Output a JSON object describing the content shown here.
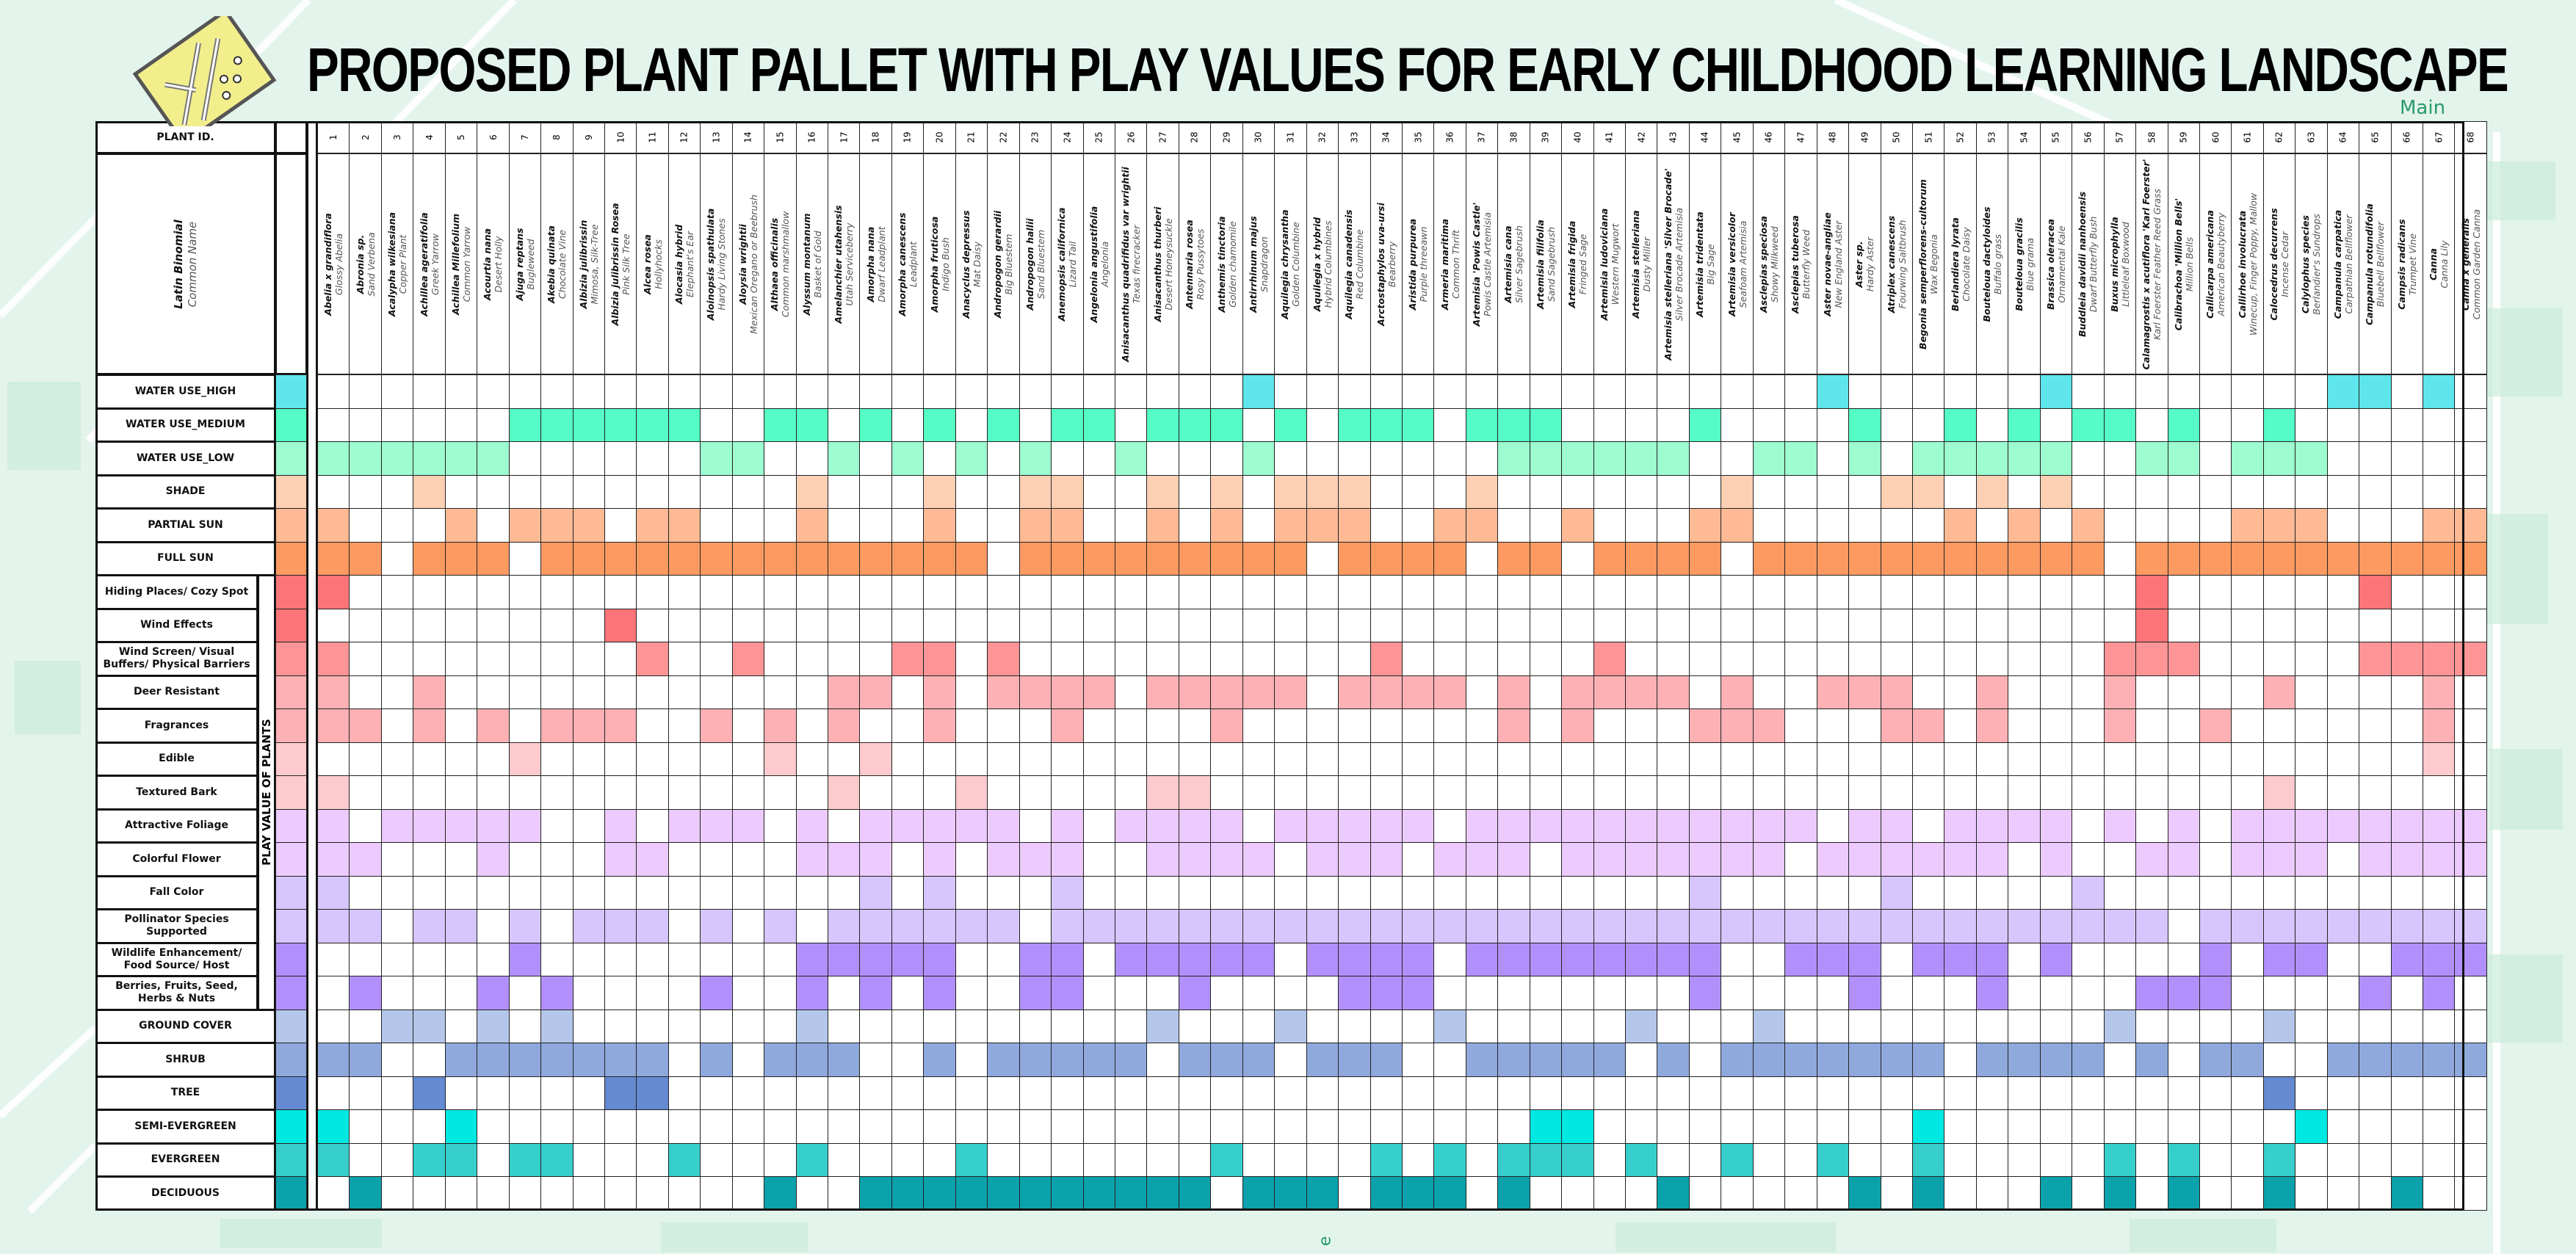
{
  "title": "PROPOSED PLANT PALLET WITH PLAY VALUES FOR EARLY CHILDHOOD LEARNING LANDSCAPE",
  "map_label": "Main",
  "map_label_bottom": "e",
  "logo_icon": "playground-map-icon",
  "header": {
    "plant_id_label": "PLANT ID.",
    "latin_label": "Latin Binomial",
    "common_label": "Common Name",
    "play_value_group_label": "PLAY VALUE OF PLANTS"
  },
  "plants": [
    {
      "id": "1",
      "latin": "Abelia x grandiflora",
      "common": "Glossy Abelia"
    },
    {
      "id": "2",
      "latin": "Abronia sp.",
      "common": "Sand Verbena"
    },
    {
      "id": "3",
      "latin": "Acalypha wilkesiana",
      "common": "Copper Plant"
    },
    {
      "id": "4",
      "latin": "Achillea ageratifolia",
      "common": "Greek Yarrow"
    },
    {
      "id": "5",
      "latin": "Achillea Millefolium",
      "common": "Common Yarrow"
    },
    {
      "id": "6",
      "latin": "Acourtia nana",
      "common": "Desert Holly"
    },
    {
      "id": "7",
      "latin": "Ajuga reptans",
      "common": "Bugleweed"
    },
    {
      "id": "8",
      "latin": "Akebia quinata",
      "common": "Chocolate Vine"
    },
    {
      "id": "9",
      "latin": "Albizia julibrissin",
      "common": "Mimosa, Silk-Tree"
    },
    {
      "id": "10",
      "latin": "Albizia julibrissin Rosea",
      "common": "Pink Silk Tree"
    },
    {
      "id": "11",
      "latin": "Alcea rosea",
      "common": "Hollyhocks"
    },
    {
      "id": "12",
      "latin": "Alocasia hybrid",
      "common": "Elephant's Ear"
    },
    {
      "id": "13",
      "latin": "Aloinopsis spathulata",
      "common": "Hardy Living Stones"
    },
    {
      "id": "14",
      "latin": "Aloysia wrightii",
      "common": "Mexican Oregano or Beebrush"
    },
    {
      "id": "15",
      "latin": "Althaea officinalis",
      "common": "Common marshmallow"
    },
    {
      "id": "16",
      "latin": "Alyssum montanum",
      "common": "Basket of Gold"
    },
    {
      "id": "17",
      "latin": "Amelanchier utahensis",
      "common": "Utah Serviceberry"
    },
    {
      "id": "18",
      "latin": "Amorpha nana",
      "common": "Dwarf Leadplant"
    },
    {
      "id": "19",
      "latin": "Amorpha canescens",
      "common": "Leadplant"
    },
    {
      "id": "20",
      "latin": "Amorpha fruticosa",
      "common": "Indigo Bush"
    },
    {
      "id": "21",
      "latin": "Anacyclus depressus",
      "common": "Mat Daisy"
    },
    {
      "id": "22",
      "latin": "Andropogon gerardii",
      "common": "Big Bluestem"
    },
    {
      "id": "23",
      "latin": "Andropogon hallii",
      "common": "Sand Bluestem"
    },
    {
      "id": "24",
      "latin": "Anemopsis californica",
      "common": "Lizard Tail"
    },
    {
      "id": "25",
      "latin": "Angelonia angustifolia",
      "common": "Angelonia"
    },
    {
      "id": "26",
      "latin": "Anisacanthus quadrifidus var wrightii",
      "common": "Texas firecracker"
    },
    {
      "id": "27",
      "latin": "Anisacanthus thurberi",
      "common": "Desert Honeysuckle"
    },
    {
      "id": "28",
      "latin": "Antennaria rosea",
      "common": "Rosy Pussytoes"
    },
    {
      "id": "29",
      "latin": "Anthemis tinctoria",
      "common": "Golden chamomile"
    },
    {
      "id": "30",
      "latin": "Antirrhinum majus",
      "common": "Snapdragon"
    },
    {
      "id": "31",
      "latin": "Aquilegia chrysantha",
      "common": "Golden Columbine"
    },
    {
      "id": "32",
      "latin": "Aquilegia x hybrid",
      "common": "Hybrid Columbines"
    },
    {
      "id": "33",
      "latin": "Aquilegia canadensis",
      "common": "Red Columbine"
    },
    {
      "id": "34",
      "latin": "Arctostaphylos uva-ursi",
      "common": "Bearberry"
    },
    {
      "id": "35",
      "latin": "Aristida purpurea",
      "common": "Purple threeawn"
    },
    {
      "id": "36",
      "latin": "Armeria maritima",
      "common": "Common Thrift"
    },
    {
      "id": "37",
      "latin": "Artemisia 'Powis Castle'",
      "common": "Powis Castle Artemisia"
    },
    {
      "id": "38",
      "latin": "Artemisia cana",
      "common": "Silver Sagebrush"
    },
    {
      "id": "39",
      "latin": "Artemisia filifolia",
      "common": "Sand Sagebrush"
    },
    {
      "id": "40",
      "latin": "Artemisia frigida",
      "common": "Fringed Sage"
    },
    {
      "id": "41",
      "latin": "Artemisia ludoviciana",
      "common": "Western Mugwort"
    },
    {
      "id": "42",
      "latin": "Artemisia stelleriana",
      "common": "Dusty Miller"
    },
    {
      "id": "43",
      "latin": "Artemisia stelleriana 'Silver Brocade'",
      "common": "Silver Brocade Artemisia"
    },
    {
      "id": "44",
      "latin": "Artemisia tridentata",
      "common": "Big Sage"
    },
    {
      "id": "45",
      "latin": "Artemisia versicolor",
      "common": "Seafoam Artemisia"
    },
    {
      "id": "46",
      "latin": "Asclepias speciosa",
      "common": "Showy Milkweed"
    },
    {
      "id": "47",
      "latin": "Asclepias tuberosa",
      "common": "Butterfly Weed"
    },
    {
      "id": "48",
      "latin": "Aster novae-angliae",
      "common": "New England Aster"
    },
    {
      "id": "49",
      "latin": "Aster sp.",
      "common": "Hardy Aster"
    },
    {
      "id": "50",
      "latin": "Atriplex canescens",
      "common": "Fourwing Saltbrush"
    },
    {
      "id": "51",
      "latin": "Begonia semperflorens-cultorum",
      "common": "Wax Begonia"
    },
    {
      "id": "52",
      "latin": "Berlandiera lyrata",
      "common": "Chocolate Daisy"
    },
    {
      "id": "53",
      "latin": "Bouteloua dactyloides",
      "common": "Buffalo grass"
    },
    {
      "id": "54",
      "latin": "Bouteloua gracilis",
      "common": "Blue grama"
    },
    {
      "id": "55",
      "latin": "Brassica oleracea",
      "common": "Ornamental Kale"
    },
    {
      "id": "56",
      "latin": "Buddleia davidii nanhoensis",
      "common": "Dwarf Butterfly Bush"
    },
    {
      "id": "57",
      "latin": "Buxus microphylla",
      "common": "Littleleaf Boxwood"
    },
    {
      "id": "58",
      "latin": "Calamagrostis x acutiflora 'Karl Foerster'",
      "common": "Karl Foerster Feather Reed Grass"
    },
    {
      "id": "59",
      "latin": "Calibrachoa 'Million Bells'",
      "common": "Million Bells"
    },
    {
      "id": "60",
      "latin": "Callicarpa americana",
      "common": "American Beautyberry"
    },
    {
      "id": "61",
      "latin": "Callirhoe involucrata",
      "common": "Winecup, Finger Poppy, Mallow"
    },
    {
      "id": "62",
      "latin": "Calocedrus decurrens",
      "common": "Incense Cedar"
    },
    {
      "id": "63",
      "latin": "Calylophus species",
      "common": "Berlandier's Sundrops"
    },
    {
      "id": "64",
      "latin": "Campanula carpatica",
      "common": "Carpathian Bellflower"
    },
    {
      "id": "65",
      "latin": "Campanula rotundifolia",
      "common": "Bluebell Bellflower"
    },
    {
      "id": "66",
      "latin": "Campsis radicans",
      "common": "Trumpet Vine"
    },
    {
      "id": "67",
      "latin": "Canna",
      "common": "Canna Lily"
    },
    {
      "id": "68",
      "latin": "Canna x generalis",
      "common": "Common Garden Canna"
    }
  ],
  "attributes": [
    {
      "label": "WATER USE_HIGH",
      "group": "main",
      "color": "#5ee6ec",
      "fill": "00000000000000000000000000000100000000000000000100000010000000011010"
    },
    {
      "label": "WATER USE_MEDIUM",
      "group": "main",
      "color": "#55fcc6",
      "fill": "00000011111100110101010110111010111011100001000010010101101001000000"
    },
    {
      "label": "WATER USE_LOW",
      "group": "main",
      "color": "#9dfcd0",
      "fill": "11111100000011001010101001000100000001111110011010111110011011100000"
    },
    {
      "label": "SHADE",
      "group": "main",
      "color": "#fdd0b4",
      "fill": "00010000000000010001001100101011100010000000100001101010000000000000"
    },
    {
      "label": "PARTIAL SUN",
      "group": "main",
      "color": "#fdba95",
      "fill": "10001011101100010001001100101011100110010001100000010101000011100011"
    },
    {
      "label": "FULL SUN",
      "group": "main",
      "color": "#fd9a62",
      "fill": "11011101111111111111101111111110111101101111011111111111011111111111"
    },
    {
      "label": "Hiding Places/ Cozy Spot",
      "group": "play",
      "color": "#fd7579",
      "fill": "10000000000000000000000000000000000000000000000000000000010000001000"
    },
    {
      "label": "Wind Effects",
      "group": "play",
      "color": "#fd7579",
      "fill": "00000000010000000000000000000000000000000000000000000000010000000000"
    },
    {
      "label": "Wind Screen/ Visual Buffers/ Physical Barriers",
      "group": "play",
      "color": "#fd9596",
      "fill": "10000000001001000011010000000000010000001000000000000000111000001111"
    },
    {
      "label": "Deer Resistant",
      "group": "play",
      "color": "#fdb1b4",
      "fill": "10010000000000001101011110111110111101011110100111001000100001000010"
    },
    {
      "label": "Fragrances",
      "group": "play",
      "color": "#fdb1b4",
      "fill": "11010101110010101001000100001000000001010001110001101000100100000010"
    },
    {
      "label": "Edible",
      "group": "play",
      "color": "#fdcbcd",
      "fill": "00000010000000100100000000000000000000000000000000000000000000000010"
    },
    {
      "label": "Textured Bark",
      "group": "play",
      "color": "#fdcbcd",
      "fill": "10000000000000001000100000110000000000000000000000000000000001000000"
    },
    {
      "label": "Attractive Foliage",
      "group": "play",
      "color": "#edcafd",
      "fill": "10111110010111010111110101111011111011111111111011011110101011111111"
    },
    {
      "label": "Colorful Flower",
      "group": "play",
      "color": "#edcafd",
      "fill": "11000100011000011101011100111101110111011111110111111010011011101111"
    },
    {
      "label": "Fall Color",
      "group": "play",
      "color": "#d6c6fd",
      "fill": "10000000000000000101000100000000000000000001000001000001000000000000"
    },
    {
      "label": "Pollinator Species Supported",
      "group": "play",
      "color": "#d6c6fd",
      "fill": "11011010111010101111110111111111111111111111111111111111110111111111"
    },
    {
      "label": "Wildlife Enhancement/ Food Source/ Host",
      "group": "play",
      "color": "#b290fb",
      "fill": "00000010000000011111001101111101111011111111001110111010000101100111"
    },
    {
      "label": "Berries, Fruits, Seed, Herbs & Nuts",
      "group": "play",
      "color": "#b290fb",
      "fill": "01000101000010010101001100010000111000000001000010001000011100001010"
    },
    {
      "label": "GROUND COVER",
      "group": "main",
      "color": "#b4c7ea",
      "fill": "00110101000000010000000000100010000100000100010000000000100001000000"
    },
    {
      "label": "SHRUB",
      "group": "main",
      "color": "#8fa9dd",
      "fill": "11001111111010111001011111011101110011111010111111101111010110011111"
    },
    {
      "label": "TREE",
      "group": "main",
      "color": "#658ad2",
      "fill": "00010000011000000000000000000000000000000000000000000000000001000000"
    },
    {
      "label": "SEMI-EVERGREEN",
      "group": "main",
      "color": "#00e8e2",
      "fill": "10001000000000000000000000000000000000110000000000100000000000100000"
    },
    {
      "label": "EVERGREEN",
      "group": "main",
      "color": "#36cfcc",
      "fill": "10011011000100010000100000001000010101110100100100100000101001000000"
    },
    {
      "label": "DECIDUOUS",
      "group": "main",
      "color": "#0ca2ac",
      "fill": "01000000000000100111111111110111011101000010000010100010101001000100"
    }
  ],
  "colors": {
    "background": "#e3f4ec",
    "grid_line": "#222222",
    "map_accent": "#2a9a6a"
  }
}
